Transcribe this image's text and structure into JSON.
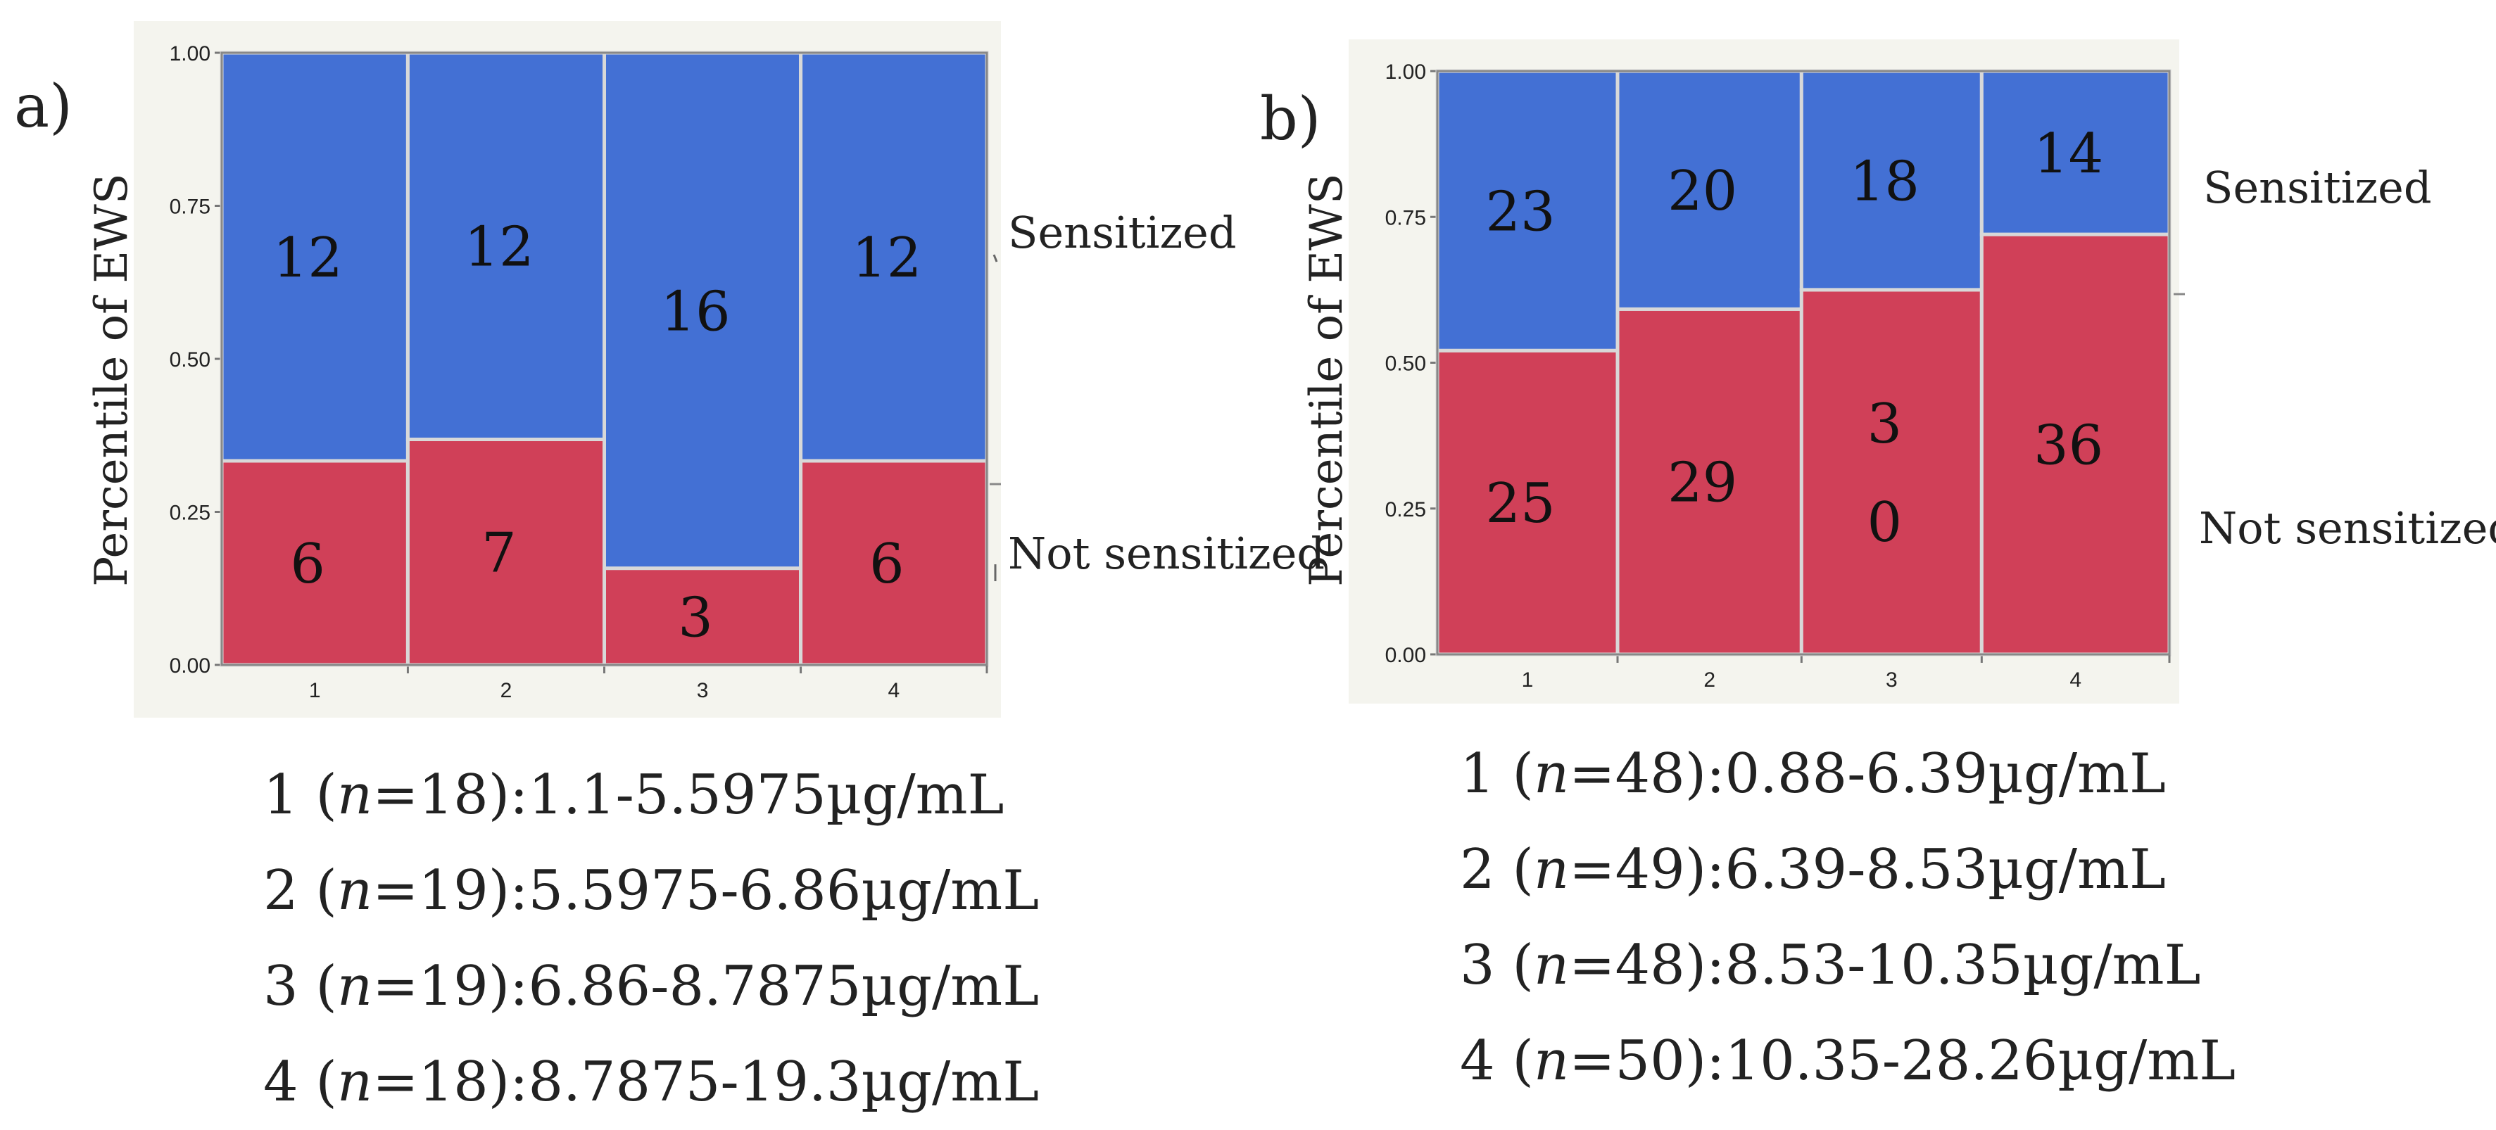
{
  "chart_data": [
    {
      "type": "mosaic",
      "panel_label": "a)",
      "ylabel": "Percentile of EWS",
      "ylim": [
        0,
        1
      ],
      "yticks": [
        "0.00",
        "0.25",
        "0.50",
        "0.75",
        "1.00"
      ],
      "categories": [
        "1",
        "2",
        "3",
        "4"
      ],
      "category_n": [
        18,
        19,
        19,
        18
      ],
      "series": [
        {
          "name": "Not sensitized",
          "color": "#D04058",
          "counts": [
            "6",
            "7",
            "3",
            "6"
          ]
        },
        {
          "name": "Sensitized",
          "color": "#4370D4",
          "counts": [
            "12",
            "12",
            "16",
            "12"
          ]
        }
      ],
      "legend": [
        {
          "n": "18",
          "range": "1.1-5.5975µg/mL"
        },
        {
          "n": "19",
          "range": "5.5975-6.86µg/mL"
        },
        {
          "n": "19",
          "range": "6.86-8.7875µg/mL"
        },
        {
          "n": "18",
          "range": "8.7875-19.3µg/mL"
        }
      ]
    },
    {
      "type": "mosaic",
      "panel_label": "b)",
      "ylabel": "Percentile of EWS",
      "ylim": [
        0,
        1
      ],
      "yticks": [
        "0.00",
        "0.25",
        "0.50",
        "0.75",
        "1.00"
      ],
      "categories": [
        "1",
        "2",
        "3",
        "4"
      ],
      "category_n": [
        48,
        49,
        48,
        50
      ],
      "series": [
        {
          "name": "Not sensitized",
          "color": "#D04058",
          "counts": [
            "25",
            "29",
            "3\n0",
            "36"
          ]
        },
        {
          "name": "Sensitized",
          "color": "#4370D4",
          "counts": [
            "23",
            "20",
            "18",
            "14"
          ]
        }
      ],
      "legend": [
        {
          "n": "48",
          "range": "0.88-6.39µg/mL"
        },
        {
          "n": "49",
          "range": "6.39-8.53µg/mL"
        },
        {
          "n": "48",
          "range": "8.53-10.35µg/mL"
        },
        {
          "n": "50",
          "range": "10.35-28.26µg/mL"
        }
      ]
    }
  ],
  "legend_prefix": "n="
}
